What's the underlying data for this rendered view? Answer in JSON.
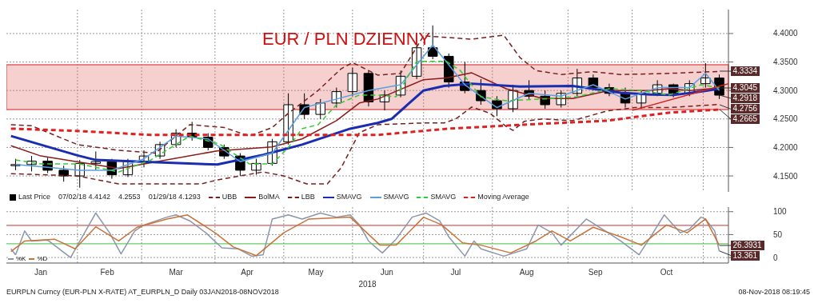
{
  "chart_data": [
    {
      "type": "candlestick",
      "title": "EUR / PLN DZIENNY",
      "xlim": [
        "2018-01-01",
        "2018-11-12"
      ],
      "ylim": [
        4.122,
        4.442
      ],
      "xticks": [
        {
          "value": "2018-02-01",
          "label": null
        },
        {
          "value": "2018-03-01",
          "label": null
        },
        {
          "value": "2018-04-02",
          "label": null
        },
        {
          "value": "2018-05-02",
          "label": null
        },
        {
          "value": "2018-06-01",
          "label": null
        },
        {
          "value": "2018-07-02",
          "label": null
        },
        {
          "value": "2018-08-01",
          "label": null
        },
        {
          "value": "2018-09-03",
          "label": null
        },
        {
          "value": "2018-10-01",
          "label": null
        },
        {
          "value": "2018-11-01",
          "label": null
        }
      ],
      "yticks": [
        {
          "value": 4.15,
          "label": "4.1500"
        },
        {
          "value": 4.2,
          "label": "4.2000"
        },
        {
          "value": 4.25,
          "label": "4.2500"
        },
        {
          "value": 4.3,
          "label": "4.3000"
        },
        {
          "value": 4.35,
          "label": "4.3500"
        },
        {
          "value": 4.4,
          "label": "4.4000"
        }
      ],
      "tick_labels": "y",
      "grid": true,
      "legend": "bottom left",
      "bands": [
        {
          "axis": "y",
          "from": 4.2665,
          "to": 4.345,
          "color": "#e06060"
        }
      ],
      "annotations": [
        "07/02/18 4.4142",
        "4.2553",
        "01/29/18 4.1293",
        {
          "text": "4.3334",
          "x": "2018-11-08",
          "y": 4.3334
        },
        {
          "text": "4.3045",
          "x": "2018-11-08",
          "y": 4.3045
        },
        {
          "text": "4.2918",
          "x": "2018-11-08",
          "y": 4.2918
        },
        {
          "text": "4.2756",
          "x": "2018-11-08",
          "y": 4.2756
        },
        {
          "text": "4.2665",
          "x": "2018-11-08",
          "y": 4.2665
        }
      ],
      "series": [
        {
          "type": "candlestick",
          "name": "Last Price",
          "color": "#000000",
          "x": [
            "2018-01-05",
            "2018-01-12",
            "2018-01-19",
            "2018-01-26",
            "2018-02-02",
            "2018-02-09",
            "2018-02-16",
            "2018-02-23",
            "2018-03-02",
            "2018-03-09",
            "2018-03-16",
            "2018-03-23",
            "2018-03-30",
            "2018-04-06",
            "2018-04-13",
            "2018-04-20",
            "2018-04-27",
            "2018-05-04",
            "2018-05-11",
            "2018-05-18",
            "2018-05-25",
            "2018-06-01",
            "2018-06-08",
            "2018-06-15",
            "2018-06-22",
            "2018-06-29",
            "2018-07-06",
            "2018-07-13",
            "2018-07-20",
            "2018-07-27",
            "2018-08-03",
            "2018-08-10",
            "2018-08-17",
            "2018-08-24",
            "2018-08-31",
            "2018-09-07",
            "2018-09-14",
            "2018-09-21",
            "2018-09-28",
            "2018-10-05",
            "2018-10-12",
            "2018-10-19",
            "2018-10-26",
            "2018-11-02",
            "2018-11-08"
          ],
          "ohlc": [
            [
              4.168,
              4.18,
              4.16,
              4.17
            ],
            [
              4.17,
              4.185,
              4.158,
              4.176
            ],
            [
              4.176,
              4.182,
              4.155,
              4.16
            ],
            [
              4.16,
              4.168,
              4.14,
              4.15
            ],
            [
              4.15,
              4.178,
              4.1293,
              4.172
            ],
            [
              4.172,
              4.193,
              4.16,
              4.175
            ],
            [
              4.175,
              4.18,
              4.145,
              4.152
            ],
            [
              4.152,
              4.18,
              4.148,
              4.176
            ],
            [
              4.176,
              4.195,
              4.165,
              4.185
            ],
            [
              4.185,
              4.21,
              4.18,
              4.205
            ],
            [
              4.205,
              4.232,
              4.2,
              4.225
            ],
            [
              4.225,
              4.245,
              4.212,
              4.218
            ],
            [
              4.218,
              4.225,
              4.195,
              4.2
            ],
            [
              4.2,
              4.205,
              4.18,
              4.185
            ],
            [
              4.185,
              4.19,
              4.15,
              4.16
            ],
            [
              4.16,
              4.18,
              4.152,
              4.172
            ],
            [
              4.172,
              4.215,
              4.168,
              4.21
            ],
            [
              4.21,
              4.295,
              4.205,
              4.275
            ],
            [
              4.275,
              4.295,
              4.25,
              4.258
            ],
            [
              4.258,
              4.285,
              4.25,
              4.278
            ],
            [
              4.278,
              4.305,
              4.27,
              4.298
            ],
            [
              4.298,
              4.34,
              4.29,
              4.33
            ],
            [
              4.33,
              4.335,
              4.272,
              4.28
            ],
            [
              4.28,
              4.3,
              4.265,
              4.292
            ],
            [
              4.292,
              4.335,
              4.288,
              4.325
            ],
            [
              4.325,
              4.385,
              4.32,
              4.375
            ],
            [
              4.375,
              4.4142,
              4.355,
              4.36
            ],
            [
              4.36,
              4.365,
              4.305,
              4.315
            ],
            [
              4.315,
              4.35,
              4.295,
              4.3
            ],
            [
              4.3,
              4.32,
              4.275,
              4.282
            ],
            [
              4.282,
              4.29,
              4.255,
              4.268
            ],
            [
              4.268,
              4.31,
              4.262,
              4.3
            ],
            [
              4.3,
              4.318,
              4.285,
              4.29
            ],
            [
              4.29,
              4.3,
              4.268,
              4.275
            ],
            [
              4.275,
              4.3,
              4.27,
              4.295
            ],
            [
              4.295,
              4.338,
              4.29,
              4.322
            ],
            [
              4.322,
              4.328,
              4.3,
              4.305
            ],
            [
              4.305,
              4.312,
              4.29,
              4.295
            ],
            [
              4.295,
              4.305,
              4.27,
              4.278
            ],
            [
              4.278,
              4.3,
              4.268,
              4.295
            ],
            [
              4.295,
              4.318,
              4.29,
              4.31
            ],
            [
              4.31,
              4.312,
              4.288,
              4.295
            ],
            [
              4.295,
              4.318,
              4.29,
              4.312
            ],
            [
              4.312,
              4.348,
              4.305,
              4.322
            ],
            [
              4.322,
              4.328,
              4.285,
              4.2918
            ]
          ]
        },
        {
          "type": "line",
          "name": "UBB",
          "color": "#7a1f1f",
          "line_style": "dashed",
          "x": [
            "2018-01-03",
            "2018-01-12",
            "2018-02-01",
            "2018-02-19",
            "2018-03-07",
            "2018-03-22",
            "2018-04-06",
            "2018-04-17",
            "2018-04-27",
            "2018-05-04",
            "2018-05-17",
            "2018-05-27",
            "2018-06-01",
            "2018-06-12",
            "2018-06-22",
            "2018-07-02",
            "2018-07-23",
            "2018-08-06",
            "2018-08-13",
            "2018-08-20",
            "2018-08-31",
            "2018-09-14",
            "2018-09-26",
            "2018-10-17",
            "2018-11-08"
          ],
          "values": [
            4.24,
            4.238,
            4.205,
            4.195,
            4.19,
            4.24,
            4.235,
            4.22,
            4.235,
            4.26,
            4.3,
            4.338,
            4.349,
            4.327,
            4.33,
            4.396,
            4.39,
            4.397,
            4.358,
            4.335,
            4.328,
            4.333,
            4.328,
            4.33,
            4.3334
          ]
        },
        {
          "type": "line",
          "name": "BolMA",
          "color": "#8b1a1a",
          "line_style": "solid",
          "x": [
            "2018-01-03",
            "2018-01-16",
            "2018-02-19",
            "2018-04-03",
            "2018-04-27",
            "2018-05-10",
            "2018-05-25",
            "2018-06-04",
            "2018-06-12",
            "2018-07-02",
            "2018-07-12",
            "2018-07-23",
            "2018-08-07",
            "2018-08-23",
            "2018-09-05",
            "2018-09-21",
            "2018-10-08",
            "2018-10-17",
            "2018-10-26",
            "2018-11-08"
          ],
          "values": [
            4.203,
            4.185,
            4.163,
            4.194,
            4.201,
            4.215,
            4.247,
            4.278,
            4.285,
            4.319,
            4.322,
            4.331,
            4.303,
            4.286,
            4.286,
            4.3,
            4.3,
            4.303,
            4.3,
            4.3045
          ]
        },
        {
          "type": "line",
          "name": "LBB",
          "color": "#7a1f1f",
          "line_style": "dashed",
          "x": [
            "2018-01-03",
            "2018-02-01",
            "2018-02-19",
            "2018-03-07",
            "2018-03-27",
            "2018-04-03",
            "2018-04-23",
            "2018-05-02",
            "2018-05-12",
            "2018-05-21",
            "2018-05-27",
            "2018-06-04",
            "2018-06-12",
            "2018-07-02",
            "2018-07-11",
            "2018-07-16",
            "2018-07-23",
            "2018-07-31",
            "2018-08-07",
            "2018-08-10",
            "2018-08-15",
            "2018-08-23",
            "2018-09-05",
            "2018-09-20",
            "2018-10-02",
            "2018-10-17",
            "2018-11-08"
          ],
          "values": [
            4.154,
            4.15,
            4.136,
            4.136,
            4.136,
            4.143,
            4.157,
            4.15,
            4.136,
            4.136,
            4.164,
            4.226,
            4.24,
            4.243,
            4.243,
            4.25,
            4.271,
            4.26,
            4.237,
            4.23,
            4.246,
            4.25,
            4.247,
            4.264,
            4.27,
            4.27,
            4.2756
          ]
        },
        {
          "type": "line",
          "name": "SMAVG",
          "color": "#1a2db0",
          "line_style": "solid",
          "x": [
            "2018-01-03",
            "2018-02-01",
            "2018-02-09",
            "2018-03-01",
            "2018-04-03",
            "2018-04-23",
            "2018-05-10",
            "2018-05-31",
            "2018-06-12",
            "2018-06-18",
            "2018-06-25",
            "2018-07-02",
            "2018-07-11",
            "2018-07-23",
            "2018-08-13",
            "2018-09-05",
            "2018-09-26",
            "2018-10-09",
            "2018-10-19",
            "2018-10-31",
            "2018-11-08"
          ],
          "values": [
            4.22,
            4.186,
            4.178,
            4.175,
            4.17,
            4.187,
            4.205,
            4.233,
            4.243,
            4.25,
            4.275,
            4.3,
            4.308,
            4.312,
            4.307,
            4.308,
            4.296,
            4.293,
            4.292,
            4.298,
            4.303
          ]
        },
        {
          "type": "line",
          "name": "SMAVG",
          "color": "#5aa0e0",
          "line_style": "solid",
          "x": [
            "2018-01-05",
            "2018-01-19",
            "2018-02-02",
            "2018-02-16",
            "2018-03-02",
            "2018-03-16",
            "2018-03-30",
            "2018-04-13",
            "2018-04-27",
            "2018-05-11",
            "2018-05-25",
            "2018-06-08",
            "2018-06-22",
            "2018-07-06",
            "2018-07-20",
            "2018-08-03",
            "2018-08-17",
            "2018-08-31",
            "2018-09-14",
            "2018-09-28",
            "2018-10-12",
            "2018-10-26",
            "2018-11-02",
            "2018-11-08"
          ],
          "values": [
            4.17,
            4.165,
            4.16,
            4.16,
            4.18,
            4.22,
            4.215,
            4.175,
            4.19,
            4.27,
            4.285,
            4.3,
            4.31,
            4.38,
            4.31,
            4.27,
            4.295,
            4.29,
            4.31,
            4.285,
            4.305,
            4.305,
            4.33,
            4.3
          ]
        },
        {
          "type": "line",
          "name": "SMAVG",
          "color": "#33cc33",
          "line_style": "dashed",
          "x": [
            "2018-01-05",
            "2018-01-16",
            "2018-02-02",
            "2018-02-19",
            "2018-03-05",
            "2018-03-22",
            "2018-04-04",
            "2018-04-17",
            "2018-04-27",
            "2018-05-04",
            "2018-05-10",
            "2018-05-17",
            "2018-05-25",
            "2018-06-04",
            "2018-06-12",
            "2018-06-20",
            "2018-06-29",
            "2018-07-12",
            "2018-07-18",
            "2018-07-27",
            "2018-08-07",
            "2018-08-27",
            "2018-09-07",
            "2018-09-21",
            "2018-10-05",
            "2018-10-17",
            "2018-10-31",
            "2018-11-08"
          ],
          "values": [
            4.178,
            4.171,
            4.171,
            4.157,
            4.178,
            4.22,
            4.206,
            4.171,
            4.171,
            4.2,
            4.233,
            4.24,
            4.275,
            4.292,
            4.292,
            4.289,
            4.351,
            4.351,
            4.335,
            4.289,
            4.282,
            4.286,
            4.289,
            4.303,
            4.3,
            4.292,
            4.31,
            4.305
          ]
        },
        {
          "type": "line",
          "name": "Moving Average",
          "color": "#e02020",
          "line_style": "dashed",
          "x": [
            "2018-01-03",
            "2018-02-01",
            "2018-03-05",
            "2018-04-09",
            "2018-05-11",
            "2018-06-12",
            "2018-07-13",
            "2018-08-15",
            "2018-09-20",
            "2018-10-17",
            "2018-11-08"
          ],
          "values": [
            4.233,
            4.229,
            4.222,
            4.222,
            4.222,
            4.222,
            4.233,
            4.24,
            4.247,
            4.261,
            4.2665
          ]
        },
        {
          "type": "line",
          "color": "#d02020",
          "line_style": "solid",
          "x": [
            "2018-10-01",
            "2018-11-12"
          ],
          "values": [
            4.265,
            4.312
          ]
        }
      ]
    },
    {
      "type": "line",
      "xlabel": "2018",
      "xlim": [
        "2018-01-01",
        "2018-11-12"
      ],
      "ylim": [
        -12,
        110
      ],
      "xticks": [
        {
          "value": "2018-01-16",
          "label": "Jan"
        },
        {
          "value": "2018-02-01",
          "label": null
        },
        {
          "value": "2018-02-14",
          "label": "Feb"
        },
        {
          "value": "2018-03-01",
          "label": null
        },
        {
          "value": "2018-03-16",
          "label": "Mar"
        },
        {
          "value": "2018-04-02",
          "label": null
        },
        {
          "value": "2018-04-16",
          "label": "Apr"
        },
        {
          "value": "2018-05-02",
          "label": null
        },
        {
          "value": "2018-05-16",
          "label": "May"
        },
        {
          "value": "2018-06-01",
          "label": null
        },
        {
          "value": "2018-06-16",
          "label": "Jun"
        },
        {
          "value": "2018-07-02",
          "label": null
        },
        {
          "value": "2018-07-16",
          "label": "Jul"
        },
        {
          "value": "2018-08-01",
          "label": null
        },
        {
          "value": "2018-08-16",
          "label": "Aug"
        },
        {
          "value": "2018-09-03",
          "label": null
        },
        {
          "value": "2018-09-15",
          "label": "Sep"
        },
        {
          "value": "2018-10-01",
          "label": null
        },
        {
          "value": "2018-10-16",
          "label": "Oct"
        },
        {
          "value": "2018-11-01",
          "label": null
        }
      ],
      "yticks": [
        0,
        50,
        100
      ],
      "grid": true,
      "legend": "bottom left",
      "ref_lines": [
        {
          "axis": "y",
          "value": 70,
          "color": "#c03030"
        },
        {
          "axis": "y",
          "value": 30,
          "color": "#40c040"
        }
      ],
      "annotations": [
        "EURPLN Curncy (EUR-PLN X-RATE) AT_EURPLN_D  Daily 03JAN2018-08NOV2018",
        "08-Nov-2018 08:19:45",
        {
          "text": "26.3931",
          "x": "2018-11-08",
          "y": 26.3931
        },
        {
          "text": "13.361",
          "x": "2018-11-08",
          "y": 13.361
        }
      ],
      "series": [
        {
          "name": "%K",
          "color": "#8a96aa",
          "x": [
            "2018-01-03",
            "2018-01-05",
            "2018-01-09",
            "2018-01-12",
            "2018-01-19",
            "2018-01-29",
            "2018-02-05",
            "2018-02-09",
            "2018-02-15",
            "2018-02-20",
            "2018-02-26",
            "2018-03-02",
            "2018-03-12",
            "2018-03-16",
            "2018-03-22",
            "2018-03-29",
            "2018-04-05",
            "2018-04-12",
            "2018-04-18",
            "2018-04-23",
            "2018-04-27",
            "2018-05-04",
            "2018-05-10",
            "2018-05-18",
            "2018-05-25",
            "2018-05-31",
            "2018-06-04",
            "2018-06-08",
            "2018-06-14",
            "2018-06-20",
            "2018-06-27",
            "2018-07-03",
            "2018-07-09",
            "2018-07-13",
            "2018-07-20",
            "2018-07-24",
            "2018-07-27",
            "2018-08-06",
            "2018-08-16",
            "2018-08-21",
            "2018-08-27",
            "2018-08-31",
            "2018-09-11",
            "2018-09-18",
            "2018-09-26",
            "2018-10-04",
            "2018-10-09",
            "2018-10-15",
            "2018-10-22",
            "2018-10-26",
            "2018-10-31",
            "2018-11-02",
            "2018-11-06",
            "2018-11-08"
          ],
          "values": [
            19,
            6,
            58,
            36,
            38,
            0,
            62,
            97,
            54,
            8,
            58,
            71,
            88,
            93,
            80,
            54,
            21,
            19,
            3,
            6,
            84,
            93,
            84,
            97,
            88,
            93,
            71,
            36,
            10,
            40,
            88,
            97,
            80,
            45,
            3,
            36,
            19,
            3,
            19,
            71,
            54,
            27,
            84,
            62,
            36,
            6,
            45,
            93,
            54,
            62,
            88,
            84,
            58,
            13.361
          ]
        },
        {
          "name": "%D",
          "color": "#c8733a",
          "x": [
            "2018-01-03",
            "2018-01-09",
            "2018-01-22",
            "2018-01-31",
            "2018-02-09",
            "2018-02-19",
            "2018-02-27",
            "2018-03-12",
            "2018-03-21",
            "2018-04-02",
            "2018-04-10",
            "2018-04-20",
            "2018-05-02",
            "2018-05-13",
            "2018-05-31",
            "2018-06-13",
            "2018-06-20",
            "2018-07-02",
            "2018-07-10",
            "2018-07-19",
            "2018-07-27",
            "2018-08-09",
            "2018-08-20",
            "2018-08-27",
            "2018-09-04",
            "2018-09-14",
            "2018-09-26",
            "2018-10-05",
            "2018-10-16",
            "2018-10-25",
            "2018-11-02",
            "2018-11-08"
          ],
          "values": [
            13,
            36,
            40,
            19,
            67,
            36,
            66,
            84,
            93,
            54,
            23,
            4,
            54,
            84,
            88,
            27,
            27,
            88,
            71,
            32,
            27,
            10,
            36,
            58,
            36,
            66,
            45,
            27,
            71,
            54,
            84,
            26.3931
          ]
        }
      ]
    }
  ]
}
